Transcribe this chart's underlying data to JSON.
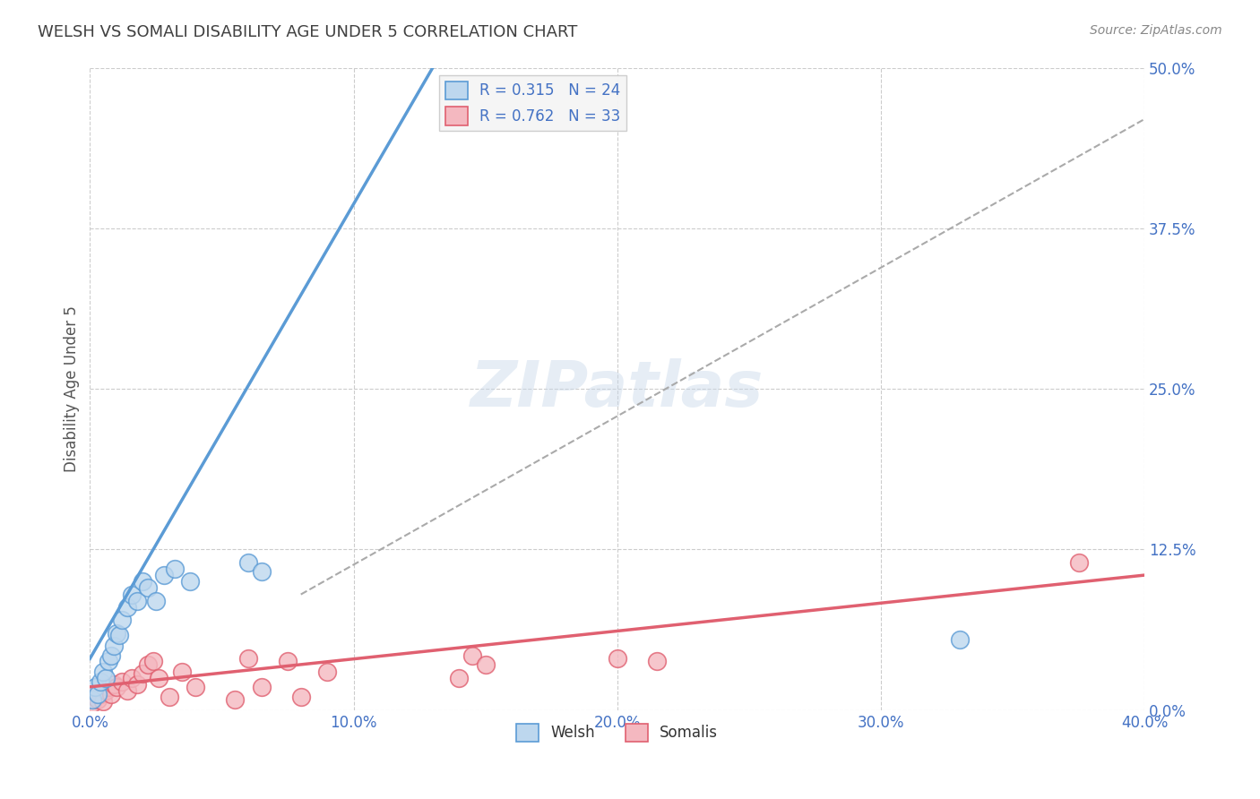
{
  "title": "WELSH VS SOMALI DISABILITY AGE UNDER 5 CORRELATION CHART",
  "source": "Source: ZipAtlas.com",
  "ylabel": "Disability Age Under 5",
  "xlim": [
    0.0,
    0.4
  ],
  "ylim": [
    0.0,
    0.5
  ],
  "welsh_R": 0.315,
  "welsh_N": 24,
  "somali_R": 0.762,
  "somali_N": 33,
  "welsh_scatter_x": [
    0.001,
    0.002,
    0.003,
    0.004,
    0.005,
    0.006,
    0.007,
    0.008,
    0.009,
    0.01,
    0.011,
    0.012,
    0.014,
    0.016,
    0.018,
    0.02,
    0.022,
    0.025,
    0.028,
    0.032,
    0.038,
    0.06,
    0.065,
    0.33
  ],
  "welsh_scatter_y": [
    0.008,
    0.018,
    0.012,
    0.022,
    0.03,
    0.025,
    0.038,
    0.042,
    0.05,
    0.06,
    0.058,
    0.07,
    0.08,
    0.09,
    0.085,
    0.1,
    0.095,
    0.085,
    0.105,
    0.11,
    0.1,
    0.115,
    0.108,
    0.055
  ],
  "somali_scatter_x": [
    0.001,
    0.002,
    0.003,
    0.004,
    0.005,
    0.006,
    0.007,
    0.008,
    0.009,
    0.01,
    0.012,
    0.014,
    0.016,
    0.018,
    0.02,
    0.022,
    0.024,
    0.026,
    0.03,
    0.035,
    0.04,
    0.055,
    0.06,
    0.065,
    0.075,
    0.08,
    0.09,
    0.14,
    0.145,
    0.15,
    0.2,
    0.215,
    0.375
  ],
  "somali_scatter_y": [
    0.005,
    0.01,
    0.008,
    0.012,
    0.007,
    0.015,
    0.018,
    0.012,
    0.02,
    0.018,
    0.022,
    0.015,
    0.025,
    0.02,
    0.028,
    0.035,
    0.038,
    0.025,
    0.01,
    0.03,
    0.018,
    0.008,
    0.04,
    0.018,
    0.038,
    0.01,
    0.03,
    0.025,
    0.042,
    0.035,
    0.04,
    0.038,
    0.115
  ],
  "welsh_line_x": [
    0.0,
    0.13
  ],
  "welsh_line_y": [
    0.04,
    0.5
  ],
  "somali_line_x": [
    0.0,
    0.4
  ],
  "somali_line_y": [
    0.018,
    0.105
  ],
  "diag_line_x": [
    0.08,
    0.4
  ],
  "diag_line_y": [
    0.09,
    0.46
  ],
  "welsh_color": "#5b9bd5",
  "welsh_fill": "#bdd7ee",
  "somali_color": "#e06070",
  "somali_fill": "#f4b8c0",
  "trendline_color": "#aaaaaa",
  "background_color": "#ffffff",
  "grid_color": "#cccccc",
  "title_color": "#404040",
  "axis_tick_color": "#4472c4",
  "watermark": "ZIPatlas"
}
